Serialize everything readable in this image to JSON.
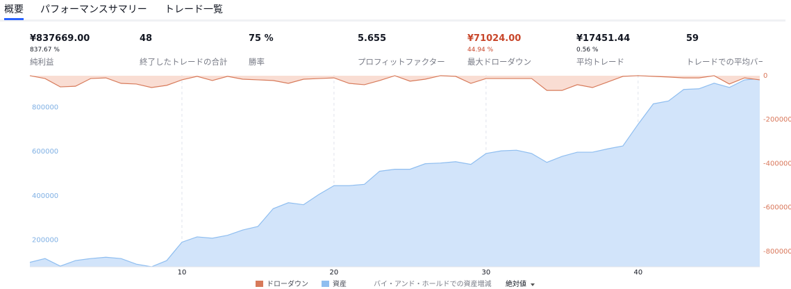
{
  "tabs": [
    "概要",
    "パフォーマンスサマリー",
    "トレード一覧"
  ],
  "stats": [
    {
      "value": "¥837669.00",
      "sub": "837.67 %",
      "label": "純利益"
    },
    {
      "value": "48",
      "label": "終了したトレードの合計"
    },
    {
      "value": "75 %",
      "label": "勝率"
    },
    {
      "value": "5.655",
      "label": "プロフィットファクター"
    },
    {
      "value": "¥71024.00",
      "sub": "44.94 %",
      "label": "最大ドローダウン",
      "color": "#c8462a"
    },
    {
      "value": "¥17451.44",
      "sub": "0.56 %",
      "label": "平均トレード"
    },
    {
      "value": "59",
      "label": "トレードでの平均バー"
    }
  ],
  "legend_controls": {
    "buy_and_hold": "バイ・アンド・ホールドでの資産増減",
    "scale": "絶対値"
  },
  "chart_data": {
    "type": "area",
    "x": [
      0,
      1,
      2,
      3,
      4,
      5,
      6,
      7,
      8,
      9,
      10,
      11,
      12,
      13,
      14,
      15,
      16,
      17,
      18,
      19,
      20,
      21,
      22,
      23,
      24,
      25,
      26,
      27,
      28,
      29,
      30,
      31,
      32,
      33,
      34,
      35,
      36,
      37,
      38,
      39,
      40,
      41,
      42,
      43,
      44,
      45,
      46,
      47,
      48
    ],
    "xlim": [
      0,
      48
    ],
    "xticks": [
      10,
      20,
      30,
      40
    ],
    "ylim": [
      80000,
      945000
    ],
    "yticks": [
      200000,
      400000,
      600000,
      800000
    ],
    "y2lim": [
      -870000,
      3000
    ],
    "y2ticks": [
      0,
      -200000,
      -400000,
      -600000,
      -800000
    ],
    "series": [
      {
        "name": "ドローダウン",
        "color": "#d77a5a",
        "fill": "#f9ddd3",
        "axis": "y2",
        "values": [
          0,
          -13000,
          -51000,
          -48000,
          -13000,
          -10000,
          -35000,
          -38000,
          -54000,
          -44000,
          -19000,
          -3000,
          -22000,
          -3000,
          -16000,
          -19000,
          -22000,
          -35000,
          -16000,
          -13000,
          -10000,
          -35000,
          -41000,
          -22000,
          0,
          -25000,
          -16000,
          0,
          -3000,
          -35000,
          -13000,
          -13000,
          -13000,
          -13000,
          -67000,
          -67000,
          -41000,
          -54000,
          -29000,
          -3000,
          0,
          -3000,
          -6000,
          -10000,
          -10000,
          0,
          -38000,
          -10000,
          -19000
        ]
      },
      {
        "name": "資産",
        "color": "#8fbef0",
        "fill": "#d2e4fa",
        "values": [
          100000,
          117000,
          83000,
          108000,
          117000,
          123000,
          117000,
          92000,
          80000,
          108000,
          191000,
          215000,
          209000,
          222000,
          246000,
          262000,
          342000,
          369000,
          360000,
          406000,
          446000,
          446000,
          452000,
          511000,
          520000,
          520000,
          545000,
          548000,
          554000,
          542000,
          591000,
          603000,
          606000,
          591000,
          551000,
          578000,
          597000,
          597000,
          612000,
          625000,
          723000,
          815000,
          828000,
          880000,
          883000,
          908000,
          889000,
          923000,
          929000
        ]
      }
    ]
  }
}
